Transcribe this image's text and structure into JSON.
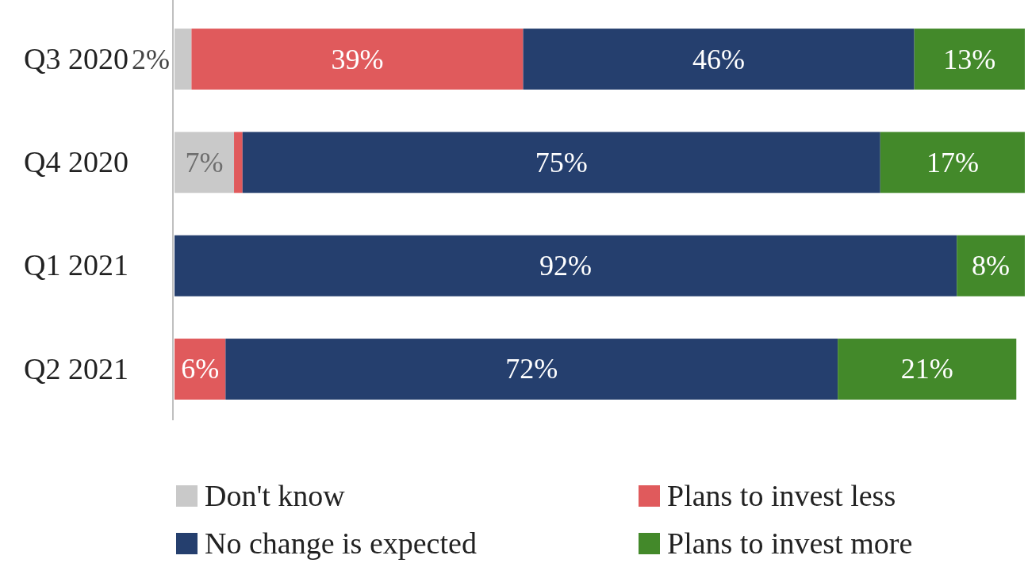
{
  "chart_data": {
    "type": "bar",
    "orientation": "horizontal",
    "stacked": true,
    "categories": [
      "Q3 2020",
      "Q4 2020",
      "Q1 2021",
      "Q2 2021"
    ],
    "series": [
      {
        "name": "Don't know",
        "color": "#c9c9c9",
        "values": [
          2,
          7,
          0,
          0
        ],
        "value_labels": [
          "2%",
          "7%",
          null,
          null
        ]
      },
      {
        "name": "Plans to invest less",
        "color": "#e05a5c",
        "values": [
          39,
          1,
          0,
          6
        ],
        "value_labels": [
          "39%",
          null,
          null,
          "6%"
        ]
      },
      {
        "name": "No change is expected",
        "color": "#253f6e",
        "values": [
          46,
          75,
          92,
          72
        ],
        "value_labels": [
          "46%",
          "75%",
          "92%",
          "72%"
        ]
      },
      {
        "name": "Plans to invest more",
        "color": "#43892a",
        "values": [
          13,
          17,
          8,
          21
        ],
        "value_labels": [
          "13%",
          "17%",
          "8%",
          "21%"
        ]
      }
    ],
    "xlim": [
      0,
      100
    ],
    "tick_labels": "y",
    "legend": "bottom"
  }
}
